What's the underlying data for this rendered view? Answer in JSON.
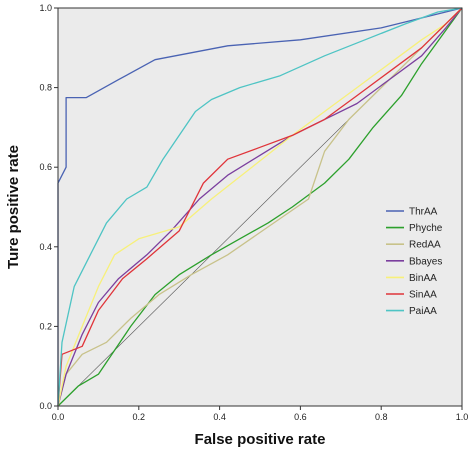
{
  "chart_data": {
    "type": "line",
    "xlabel": "False positive rate",
    "ylabel": "Ture positive rate",
    "xlim": [
      0,
      1
    ],
    "ylim": [
      0,
      1
    ],
    "x_ticks": [
      "0.0",
      "0.2",
      "0.4",
      "0.6",
      "0.8",
      "1.0"
    ],
    "y_ticks": [
      "0.0",
      "0.2",
      "0.4",
      "0.6",
      "0.8",
      "1.0"
    ],
    "grid": false,
    "background": "#ebebeb",
    "legend_position": "right",
    "series": [
      {
        "name": "ThrAA",
        "color": "#4a63b3",
        "points": [
          [
            0,
            0
          ],
          [
            0,
            0.56
          ],
          [
            0.02,
            0.6
          ],
          [
            0.02,
            0.775
          ],
          [
            0.07,
            0.775
          ],
          [
            0.15,
            0.82
          ],
          [
            0.24,
            0.87
          ],
          [
            0.42,
            0.905
          ],
          [
            0.6,
            0.92
          ],
          [
            0.8,
            0.95
          ],
          [
            1,
            1
          ]
        ]
      },
      {
        "name": "Phyche",
        "color": "#2ca02c",
        "points": [
          [
            0,
            0
          ],
          [
            0.05,
            0.05
          ],
          [
            0.1,
            0.08
          ],
          [
            0.14,
            0.14
          ],
          [
            0.18,
            0.2
          ],
          [
            0.24,
            0.28
          ],
          [
            0.3,
            0.33
          ],
          [
            0.38,
            0.38
          ],
          [
            0.45,
            0.42
          ],
          [
            0.52,
            0.46
          ],
          [
            0.58,
            0.5
          ],
          [
            0.66,
            0.56
          ],
          [
            0.72,
            0.62
          ],
          [
            0.78,
            0.7
          ],
          [
            0.85,
            0.78
          ],
          [
            0.9,
            0.86
          ],
          [
            0.95,
            0.93
          ],
          [
            1,
            1
          ]
        ]
      },
      {
        "name": "RedAA",
        "color": "#c8c28a",
        "points": [
          [
            0,
            0
          ],
          [
            0.02,
            0.08
          ],
          [
            0.06,
            0.13
          ],
          [
            0.12,
            0.16
          ],
          [
            0.18,
            0.22
          ],
          [
            0.25,
            0.28
          ],
          [
            0.33,
            0.33
          ],
          [
            0.42,
            0.38
          ],
          [
            0.52,
            0.45
          ],
          [
            0.62,
            0.52
          ],
          [
            0.66,
            0.64
          ],
          [
            0.72,
            0.72
          ],
          [
            0.8,
            0.8
          ],
          [
            0.88,
            0.88
          ],
          [
            0.95,
            0.95
          ],
          [
            1,
            1
          ]
        ]
      },
      {
        "name": "Bbayes",
        "color": "#7b3f9e",
        "points": [
          [
            0,
            0
          ],
          [
            0.02,
            0.08
          ],
          [
            0.06,
            0.18
          ],
          [
            0.1,
            0.26
          ],
          [
            0.15,
            0.32
          ],
          [
            0.22,
            0.38
          ],
          [
            0.28,
            0.44
          ],
          [
            0.35,
            0.52
          ],
          [
            0.42,
            0.58
          ],
          [
            0.5,
            0.63
          ],
          [
            0.58,
            0.68
          ],
          [
            0.66,
            0.72
          ],
          [
            0.74,
            0.76
          ],
          [
            0.82,
            0.82
          ],
          [
            0.9,
            0.88
          ],
          [
            0.96,
            0.95
          ],
          [
            1,
            1
          ]
        ]
      },
      {
        "name": "BinAA",
        "color": "#f7f07a",
        "points": [
          [
            0,
            0
          ],
          [
            0.02,
            0.1
          ],
          [
            0.06,
            0.2
          ],
          [
            0.1,
            0.3
          ],
          [
            0.14,
            0.38
          ],
          [
            0.2,
            0.42
          ],
          [
            0.3,
            0.45
          ],
          [
            0.38,
            0.52
          ],
          [
            0.48,
            0.6
          ],
          [
            0.58,
            0.68
          ],
          [
            0.66,
            0.74
          ],
          [
            0.74,
            0.8
          ],
          [
            0.82,
            0.86
          ],
          [
            0.9,
            0.92
          ],
          [
            0.96,
            0.96
          ],
          [
            1,
            1
          ]
        ]
      },
      {
        "name": "SinAA",
        "color": "#e0343a",
        "points": [
          [
            0,
            0
          ],
          [
            0.01,
            0.13
          ],
          [
            0.06,
            0.15
          ],
          [
            0.1,
            0.24
          ],
          [
            0.16,
            0.32
          ],
          [
            0.22,
            0.37
          ],
          [
            0.3,
            0.44
          ],
          [
            0.36,
            0.56
          ],
          [
            0.42,
            0.62
          ],
          [
            0.5,
            0.65
          ],
          [
            0.58,
            0.68
          ],
          [
            0.66,
            0.72
          ],
          [
            0.74,
            0.78
          ],
          [
            0.82,
            0.84
          ],
          [
            0.9,
            0.9
          ],
          [
            0.96,
            0.96
          ],
          [
            1,
            1
          ]
        ]
      },
      {
        "name": "PaiAA",
        "color": "#4ec4c4",
        "points": [
          [
            0,
            0
          ],
          [
            0.01,
            0.16
          ],
          [
            0.04,
            0.3
          ],
          [
            0.08,
            0.38
          ],
          [
            0.12,
            0.46
          ],
          [
            0.17,
            0.52
          ],
          [
            0.22,
            0.55
          ],
          [
            0.26,
            0.62
          ],
          [
            0.3,
            0.68
          ],
          [
            0.34,
            0.74
          ],
          [
            0.38,
            0.77
          ],
          [
            0.45,
            0.8
          ],
          [
            0.55,
            0.83
          ],
          [
            0.66,
            0.88
          ],
          [
            0.76,
            0.92
          ],
          [
            0.86,
            0.96
          ],
          [
            0.94,
            0.99
          ],
          [
            1,
            1
          ]
        ]
      }
    ]
  }
}
